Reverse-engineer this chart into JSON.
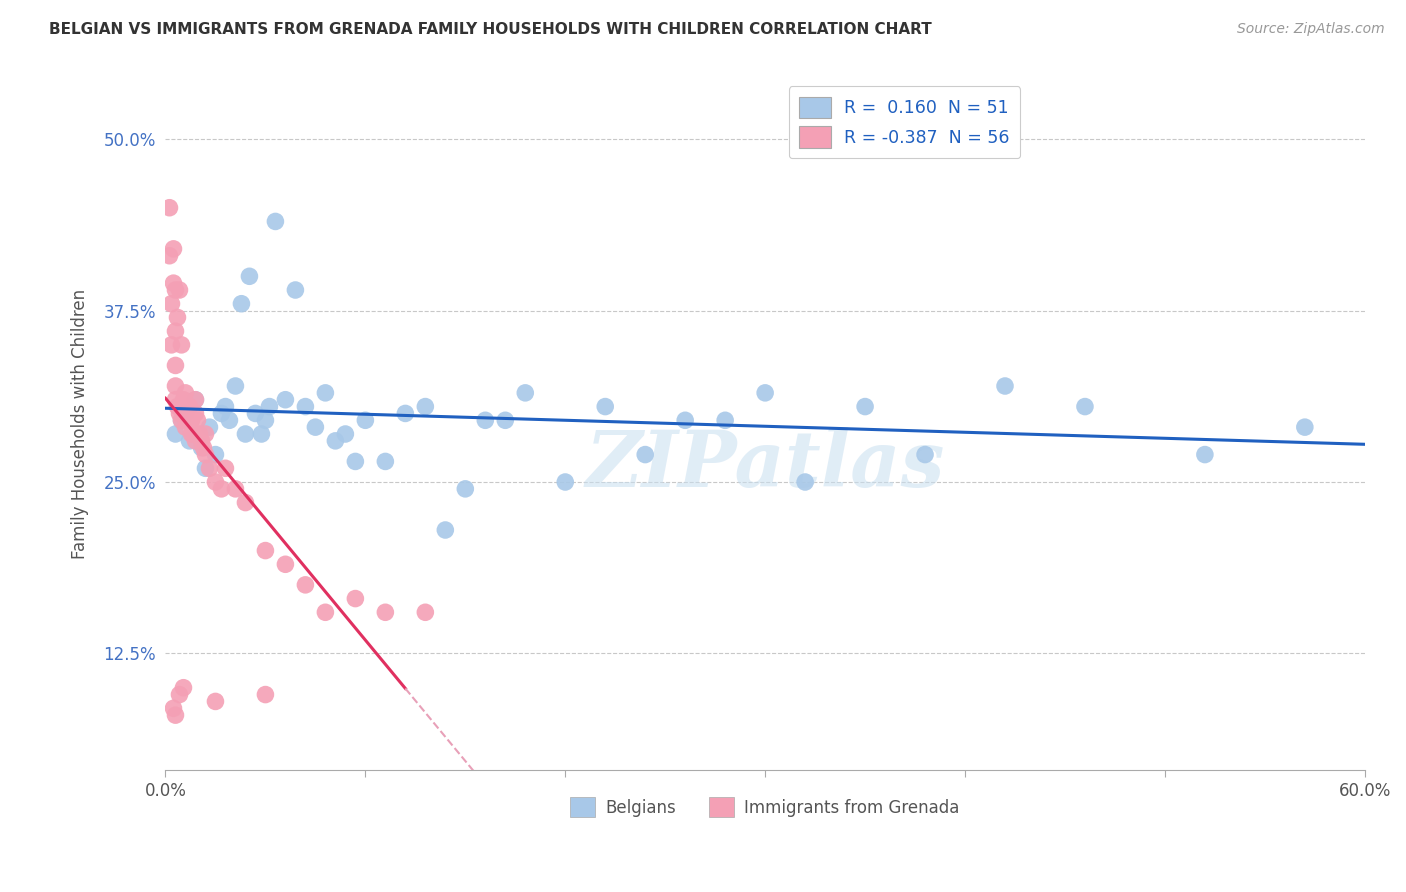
{
  "title": "BELGIAN VS IMMIGRANTS FROM GRENADA FAMILY HOUSEHOLDS WITH CHILDREN CORRELATION CHART",
  "source": "Source: ZipAtlas.com",
  "ylabel": "Family Households with Children",
  "xlim": [
    0.0,
    0.6
  ],
  "ylim": [
    0.04,
    0.545
  ],
  "yticks": [
    0.125,
    0.25,
    0.375,
    0.5
  ],
  "yticklabels": [
    "12.5%",
    "25.0%",
    "37.5%",
    "50.0%"
  ],
  "legend_label1": "Belgians",
  "legend_label2": "Immigrants from Grenada",
  "color_blue": "#a8c8e8",
  "color_pink": "#f4a0b5",
  "trendline_blue": "#2060c0",
  "trendline_pink": "#e03060",
  "trendline_pink_dash": "#e8a0b8",
  "watermark": "ZIPatlas",
  "belgians_x": [
    0.005,
    0.008,
    0.01,
    0.012,
    0.015,
    0.018,
    0.02,
    0.022,
    0.025,
    0.028,
    0.03,
    0.032,
    0.035,
    0.038,
    0.04,
    0.042,
    0.045,
    0.048,
    0.05,
    0.052,
    0.055,
    0.06,
    0.065,
    0.07,
    0.075,
    0.08,
    0.085,
    0.09,
    0.095,
    0.1,
    0.11,
    0.12,
    0.13,
    0.14,
    0.15,
    0.16,
    0.17,
    0.18,
    0.2,
    0.22,
    0.24,
    0.26,
    0.28,
    0.3,
    0.32,
    0.35,
    0.38,
    0.42,
    0.46,
    0.52,
    0.57
  ],
  "belgians_y": [
    0.285,
    0.295,
    0.3,
    0.28,
    0.31,
    0.275,
    0.26,
    0.29,
    0.27,
    0.3,
    0.305,
    0.295,
    0.32,
    0.38,
    0.285,
    0.4,
    0.3,
    0.285,
    0.295,
    0.305,
    0.44,
    0.31,
    0.39,
    0.305,
    0.29,
    0.315,
    0.28,
    0.285,
    0.265,
    0.295,
    0.265,
    0.3,
    0.305,
    0.215,
    0.245,
    0.295,
    0.295,
    0.315,
    0.25,
    0.305,
    0.27,
    0.295,
    0.295,
    0.315,
    0.25,
    0.305,
    0.27,
    0.32,
    0.305,
    0.27,
    0.29
  ],
  "grenada_x": [
    0.002,
    0.002,
    0.003,
    0.003,
    0.004,
    0.004,
    0.005,
    0.005,
    0.005,
    0.005,
    0.005,
    0.006,
    0.006,
    0.007,
    0.007,
    0.008,
    0.008,
    0.009,
    0.01,
    0.01,
    0.01,
    0.01,
    0.011,
    0.012,
    0.012,
    0.013,
    0.013,
    0.014,
    0.015,
    0.015,
    0.015,
    0.016,
    0.017,
    0.018,
    0.019,
    0.02,
    0.02,
    0.022,
    0.025,
    0.028,
    0.03,
    0.035,
    0.04,
    0.05,
    0.06,
    0.07,
    0.08,
    0.095,
    0.11,
    0.13,
    0.005,
    0.004,
    0.007,
    0.009,
    0.025,
    0.05
  ],
  "grenada_y": [
    0.45,
    0.415,
    0.38,
    0.35,
    0.42,
    0.395,
    0.36,
    0.335,
    0.32,
    0.39,
    0.31,
    0.37,
    0.305,
    0.39,
    0.3,
    0.35,
    0.295,
    0.31,
    0.315,
    0.305,
    0.3,
    0.29,
    0.3,
    0.305,
    0.295,
    0.295,
    0.285,
    0.285,
    0.31,
    0.3,
    0.28,
    0.295,
    0.285,
    0.28,
    0.275,
    0.285,
    0.27,
    0.26,
    0.25,
    0.245,
    0.26,
    0.245,
    0.235,
    0.2,
    0.19,
    0.175,
    0.155,
    0.165,
    0.155,
    0.155,
    0.08,
    0.085,
    0.095,
    0.1,
    0.09,
    0.095
  ]
}
